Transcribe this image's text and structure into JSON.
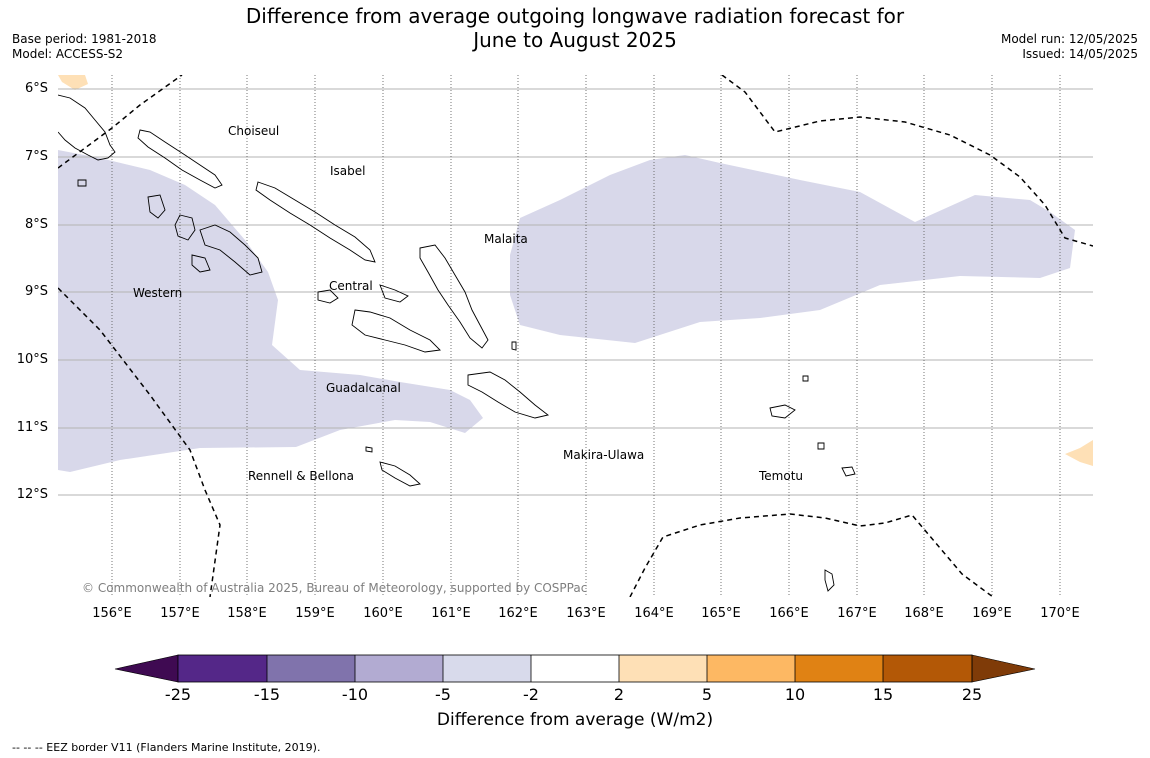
{
  "title": {
    "line1": "Difference from average outgoing longwave radiation forecast for",
    "line2": "June to August 2025"
  },
  "meta_left": {
    "base_period": "Base period: 1981-2018",
    "model": "Model: ACCESS-S2"
  },
  "meta_right": {
    "model_run": "Model run: 12/05/2025",
    "issued": "Issued: 14/05/2025"
  },
  "map": {
    "lat_ticks": [
      "6°S",
      "7°S",
      "8°S",
      "9°S",
      "10°S",
      "11°S",
      "12°S"
    ],
    "lon_ticks": [
      "156°E",
      "157°E",
      "158°E",
      "159°E",
      "160°E",
      "161°E",
      "162°E",
      "163°E",
      "164°E",
      "165°E",
      "166°E",
      "167°E",
      "168°E",
      "169°E",
      "170°E"
    ],
    "regions": {
      "choiseul": "Choiseul",
      "isabel": "Isabel",
      "malaita": "Malaita",
      "western": "Western",
      "central": "Central",
      "guadalcanal": "Guadalcanal",
      "makira_ulawa": "Makira-Ulawa",
      "rennell_bellona": "Rennell & Bellona",
      "temotu": "Temotu"
    },
    "copyright": "© Commonwealth of Australia 2025, Bureau of Meteorology, supported by COSPPac",
    "anomaly_colors": {
      "minus5_to_minus2": "#d8d8ea",
      "plus2_to_plus5": "#fee0b6"
    }
  },
  "colorbar": {
    "ticks": [
      "-25",
      "-15",
      "-10",
      "-5",
      "-2",
      "2",
      "5",
      "10",
      "15",
      "25"
    ],
    "colors": [
      "#3f0a52",
      "#542788",
      "#8073ac",
      "#b2abd2",
      "#d8daeb",
      "#ffffff",
      "#fee0b6",
      "#fdb863",
      "#e08214",
      "#b35806",
      "#7f3b08"
    ],
    "label": "Difference from average (W/m2)"
  },
  "footer": {
    "eez_legend": "--  --  -- EEZ border V11 (Flanders Marine Institute, 2019)."
  }
}
